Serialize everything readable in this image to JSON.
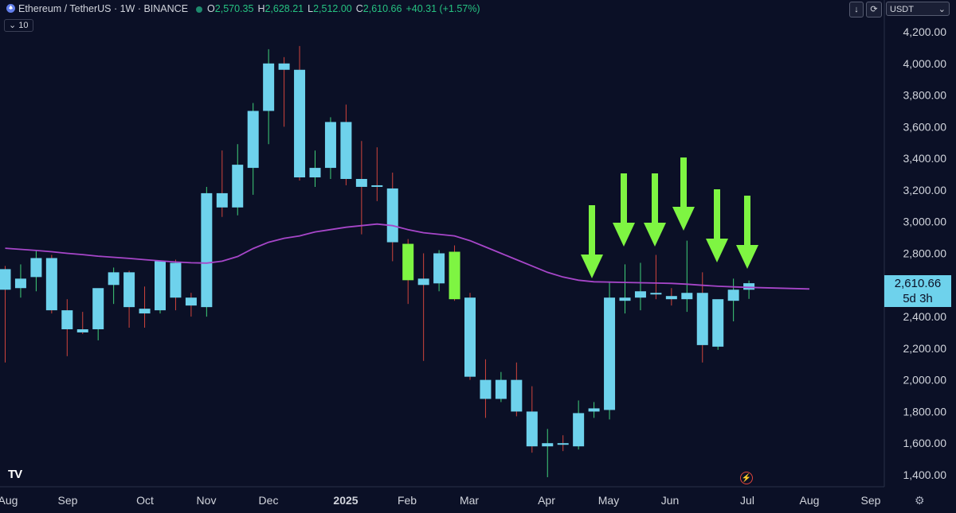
{
  "header": {
    "symbol": "Ethereum / TetherUS · 1W · BINANCE",
    "o_label": "O",
    "o_val": "2,570.35",
    "h_label": "H",
    "h_val": "2,628.21",
    "l_label": "L",
    "l_val": "2,512.00",
    "c_label": "C",
    "c_val": "2,610.66",
    "change": "+40.31 (+1.57%)",
    "ma_period": "10"
  },
  "toolbar": {
    "down_glyph": "↓",
    "currency": "USDT"
  },
  "price_tag": {
    "price": "2,610.66",
    "countdown": "5d 3h"
  },
  "colors": {
    "background": "#0b1026",
    "candle_up": "#6ed2ec",
    "candle_down": "#6ed2ec",
    "highlight": "#7ef542",
    "ma": "#a746c9",
    "arrow": "#7ef542",
    "wick_up": "#3fd07a",
    "wick_down": "#d0443c"
  },
  "chart_data": {
    "type": "candlestick",
    "ylim": [
      1340,
      4260
    ],
    "yticks": [
      "4,200.00",
      "4,000.00",
      "3,800.00",
      "3,600.00",
      "3,400.00",
      "3,200.00",
      "3,000.00",
      "2,800.00",
      "2,600.00",
      "2,400.00",
      "2,200.00",
      "2,000.00",
      "1,800.00",
      "1,600.00",
      "1,400.00"
    ],
    "ytick_values": [
      4200,
      4000,
      3800,
      3600,
      3400,
      3200,
      3000,
      2800,
      2600,
      2400,
      2200,
      2000,
      1800,
      1600,
      1400
    ],
    "xlabels": [
      "Aug",
      "Sep",
      "Oct",
      "Nov",
      "Dec",
      "2025",
      "Feb",
      "Mar",
      "Apr",
      "May",
      "Jun",
      "Jul",
      "Aug",
      "Sep"
    ],
    "candles": [
      {
        "o": 2700,
        "h": 2720,
        "l": 2110,
        "c": 2570
      },
      {
        "o": 2580,
        "h": 2730,
        "l": 2520,
        "c": 2640
      },
      {
        "o": 2650,
        "h": 2820,
        "l": 2560,
        "c": 2770
      },
      {
        "o": 2770,
        "h": 2790,
        "l": 2420,
        "c": 2440
      },
      {
        "o": 2440,
        "h": 2510,
        "l": 2150,
        "c": 2320
      },
      {
        "o": 2320,
        "h": 2430,
        "l": 2290,
        "c": 2300
      },
      {
        "o": 2320,
        "h": 2570,
        "l": 2250,
        "c": 2580
      },
      {
        "o": 2600,
        "h": 2710,
        "l": 2480,
        "c": 2680
      },
      {
        "o": 2680,
        "h": 2690,
        "l": 2330,
        "c": 2460
      },
      {
        "o": 2450,
        "h": 2590,
        "l": 2330,
        "c": 2420
      },
      {
        "o": 2440,
        "h": 2730,
        "l": 2420,
        "c": 2750
      },
      {
        "o": 2740,
        "h": 2760,
        "l": 2440,
        "c": 2520
      },
      {
        "o": 2520,
        "h": 2550,
        "l": 2400,
        "c": 2470
      },
      {
        "o": 2460,
        "h": 3220,
        "l": 2400,
        "c": 3180
      },
      {
        "o": 3180,
        "h": 3450,
        "l": 3030,
        "c": 3090
      },
      {
        "o": 3090,
        "h": 3490,
        "l": 3040,
        "c": 3360
      },
      {
        "o": 3340,
        "h": 3750,
        "l": 3170,
        "c": 3700
      },
      {
        "o": 3700,
        "h": 4090,
        "l": 3490,
        "c": 4000
      },
      {
        "o": 4000,
        "h": 4040,
        "l": 3600,
        "c": 3960
      },
      {
        "o": 3960,
        "h": 4110,
        "l": 3260,
        "c": 3280
      },
      {
        "o": 3280,
        "h": 3450,
        "l": 3220,
        "c": 3340
      },
      {
        "o": 3340,
        "h": 3660,
        "l": 3270,
        "c": 3630
      },
      {
        "o": 3630,
        "h": 3740,
        "l": 3230,
        "c": 3270
      },
      {
        "o": 3270,
        "h": 3510,
        "l": 2920,
        "c": 3220
      },
      {
        "o": 3230,
        "h": 3470,
        "l": 3130,
        "c": 3220
      },
      {
        "o": 3210,
        "h": 3310,
        "l": 2750,
        "c": 2870
      },
      {
        "o": 2860,
        "h": 2890,
        "l": 2480,
        "c": 2630,
        "hl": true
      },
      {
        "o": 2640,
        "h": 2800,
        "l": 2120,
        "c": 2600
      },
      {
        "o": 2610,
        "h": 2820,
        "l": 2560,
        "c": 2800
      },
      {
        "o": 2810,
        "h": 2850,
        "l": 2500,
        "c": 2510,
        "hl": true
      },
      {
        "o": 2520,
        "h": 2550,
        "l": 2000,
        "c": 2020
      },
      {
        "o": 2000,
        "h": 2130,
        "l": 1760,
        "c": 1880
      },
      {
        "o": 1880,
        "h": 2050,
        "l": 1860,
        "c": 2000
      },
      {
        "o": 2000,
        "h": 2110,
        "l": 1770,
        "c": 1800
      },
      {
        "o": 1800,
        "h": 1960,
        "l": 1540,
        "c": 1580
      },
      {
        "o": 1580,
        "h": 1690,
        "l": 1385,
        "c": 1600
      },
      {
        "o": 1600,
        "h": 1650,
        "l": 1550,
        "c": 1590
      },
      {
        "o": 1580,
        "h": 1870,
        "l": 1560,
        "c": 1790
      },
      {
        "o": 1800,
        "h": 1860,
        "l": 1760,
        "c": 1820
      },
      {
        "o": 1810,
        "h": 2620,
        "l": 1750,
        "c": 2520
      },
      {
        "o": 2500,
        "h": 2730,
        "l": 2420,
        "c": 2520
      },
      {
        "o": 2520,
        "h": 2740,
        "l": 2440,
        "c": 2560
      },
      {
        "o": 2550,
        "h": 2790,
        "l": 2510,
        "c": 2540
      },
      {
        "o": 2530,
        "h": 2580,
        "l": 2470,
        "c": 2510
      },
      {
        "o": 2510,
        "h": 2880,
        "l": 2430,
        "c": 2550
      },
      {
        "o": 2550,
        "h": 2680,
        "l": 2110,
        "c": 2220
      },
      {
        "o": 2210,
        "h": 2500,
        "l": 2190,
        "c": 2510
      },
      {
        "o": 2500,
        "h": 2640,
        "l": 2370,
        "c": 2570
      },
      {
        "o": 2570,
        "h": 2628,
        "l": 2512,
        "c": 2611
      }
    ],
    "ma": [
      2832,
      2825,
      2818,
      2810,
      2800,
      2792,
      2782,
      2775,
      2768,
      2760,
      2752,
      2745,
      2740,
      2738,
      2750,
      2780,
      2830,
      2870,
      2895,
      2910,
      2935,
      2950,
      2965,
      2975,
      2985,
      2975,
      2950,
      2930,
      2920,
      2910,
      2880,
      2840,
      2800,
      2760,
      2720,
      2680,
      2650,
      2630,
      2620,
      2618,
      2616,
      2614,
      2612,
      2610,
      2605,
      2598,
      2592,
      2588,
      2585
    ],
    "ma_extend_to": 2575
  }
}
